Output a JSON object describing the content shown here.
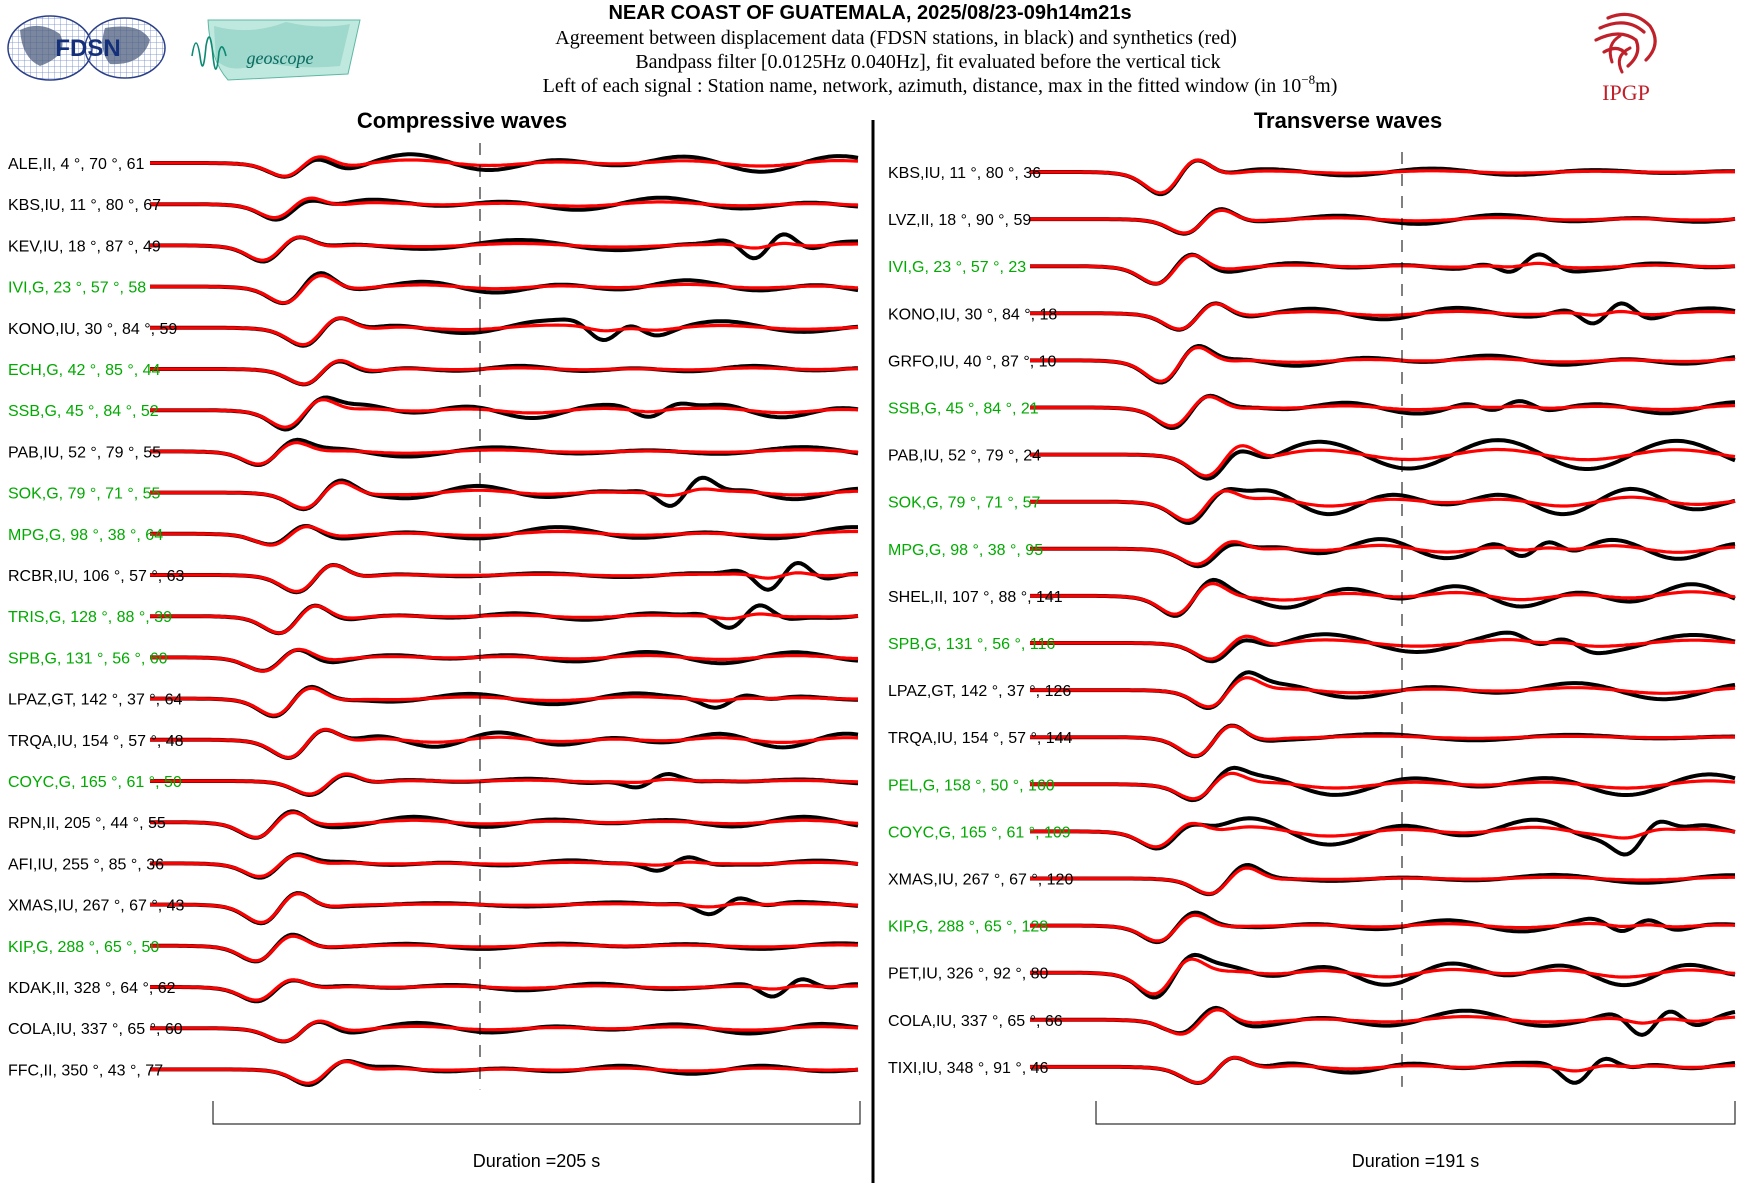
{
  "header": {
    "title": "NEAR COAST OF GUATEMALA, 2025/08/23-09h14m21s",
    "line1": "Agreement between displacement data (FDSN stations, in black) and synthetics (red)",
    "line2": "Bandpass filter [0.0125Hz 0.040Hz], fit evaluated before the vertical tick",
    "line3_prefix": "Left of each signal : Station name, network, azimuth, distance, max in the fitted window (in 10",
    "line3_exp": "−8",
    "line3_suffix": "m)"
  },
  "logos": {
    "fdsn": "FDSN",
    "geoscope": "geoscope",
    "ipgp": "IPGP"
  },
  "colors": {
    "data": "#000000",
    "synthetic": "#ff0000",
    "geoscope_label": "#00aa00",
    "other_label": "#000000"
  },
  "chart_data": [
    {
      "type": "line",
      "title": "Compressive waves",
      "xlabel": "Duration =205 s",
      "duration_s": 205,
      "series": [
        {
          "name": "data"
        },
        {
          "name": "synthetics"
        }
      ],
      "stations": [
        {
          "label": "ALE,II, 4 °, 70 °, 61",
          "net": "II"
        },
        {
          "label": "KBS,IU, 11 °, 80 °, 67",
          "net": "IU"
        },
        {
          "label": "KEV,IU, 18 °, 87 °, 49",
          "net": "IU"
        },
        {
          "label": "IVI,G, 23 °, 57 °, 58",
          "net": "G"
        },
        {
          "label": "KONO,IU, 30 °, 84 °, 59",
          "net": "IU"
        },
        {
          "label": "ECH,G, 42 °, 85 °, 44",
          "net": "G"
        },
        {
          "label": "SSB,G, 45 °, 84 °, 52",
          "net": "G"
        },
        {
          "label": "PAB,IU, 52 °, 79 °, 55",
          "net": "IU"
        },
        {
          "label": "SOK,G, 79 °, 71 °, 55",
          "net": "G"
        },
        {
          "label": "MPG,G, 98 °, 38 °, 64",
          "net": "G"
        },
        {
          "label": "RCBR,IU, 106 °, 57 °, 63",
          "net": "IU"
        },
        {
          "label": "TRIS,G, 128 °, 88 °, 39",
          "net": "G"
        },
        {
          "label": "SPB,G, 131 °, 56 °, 60",
          "net": "G"
        },
        {
          "label": "LPAZ,GT, 142 °, 37 °, 64",
          "net": "GT"
        },
        {
          "label": "TRQA,IU, 154 °, 57 °, 48",
          "net": "IU"
        },
        {
          "label": "COYC,G, 165 °, 61 °, 50",
          "net": "G"
        },
        {
          "label": "RPN,II, 205 °, 44 °, 55",
          "net": "II"
        },
        {
          "label": "AFI,IU, 255 °, 85 °, 36",
          "net": "IU"
        },
        {
          "label": "XMAS,IU, 267 °, 67 °, 43",
          "net": "IU"
        },
        {
          "label": "KIP,G, 288 °, 65 °, 50",
          "net": "G"
        },
        {
          "label": "KDAK,II, 328 °, 64 °, 62",
          "net": "II"
        },
        {
          "label": "COLA,IU, 337 °, 65 °, 60",
          "net": "IU"
        },
        {
          "label": "FFC,II, 350 °, 43 °, 77",
          "net": "II"
        }
      ]
    },
    {
      "type": "line",
      "title": "Transverse waves",
      "xlabel": "Duration =191 s",
      "duration_s": 191,
      "series": [
        {
          "name": "data"
        },
        {
          "name": "synthetics"
        }
      ],
      "stations": [
        {
          "label": "KBS,IU, 11 °, 80 °, 36",
          "net": "IU"
        },
        {
          "label": "LVZ,II, 18 °, 90 °, 59",
          "net": "II"
        },
        {
          "label": "IVI,G, 23 °, 57 °, 23",
          "net": "G"
        },
        {
          "label": "KONO,IU, 30 °, 84 °, 18",
          "net": "IU"
        },
        {
          "label": "GRFO,IU, 40 °, 87 °, 10",
          "net": "IU"
        },
        {
          "label": "SSB,G, 45 °, 84 °, 21",
          "net": "G"
        },
        {
          "label": "PAB,IU, 52 °, 79 °, 24",
          "net": "IU"
        },
        {
          "label": "SOK,G, 79 °, 71 °, 57",
          "net": "G"
        },
        {
          "label": "MPG,G, 98 °, 38 °, 95",
          "net": "G"
        },
        {
          "label": "SHEL,II, 107 °, 88 °, 141",
          "net": "II"
        },
        {
          "label": "SPB,G, 131 °, 56 °, 116",
          "net": "G"
        },
        {
          "label": "LPAZ,GT, 142 °, 37 °, 126",
          "net": "GT"
        },
        {
          "label": "TRQA,IU, 154 °, 57 °, 144",
          "net": "IU"
        },
        {
          "label": "PEL,G, 158 °, 50 °, 160",
          "net": "G"
        },
        {
          "label": "COYC,G, 165 °, 61 °, 109",
          "net": "G"
        },
        {
          "label": "XMAS,IU, 267 °, 67 °, 120",
          "net": "IU"
        },
        {
          "label": "KIP,G, 288 °, 65 °, 128",
          "net": "G"
        },
        {
          "label": "PET,IU, 326 °, 92 °, 80",
          "net": "IU"
        },
        {
          "label": "COLA,IU, 337 °, 65 °, 66",
          "net": "IU"
        },
        {
          "label": "TIXI,IU, 348 °, 91 °, 46",
          "net": "IU"
        }
      ]
    }
  ]
}
